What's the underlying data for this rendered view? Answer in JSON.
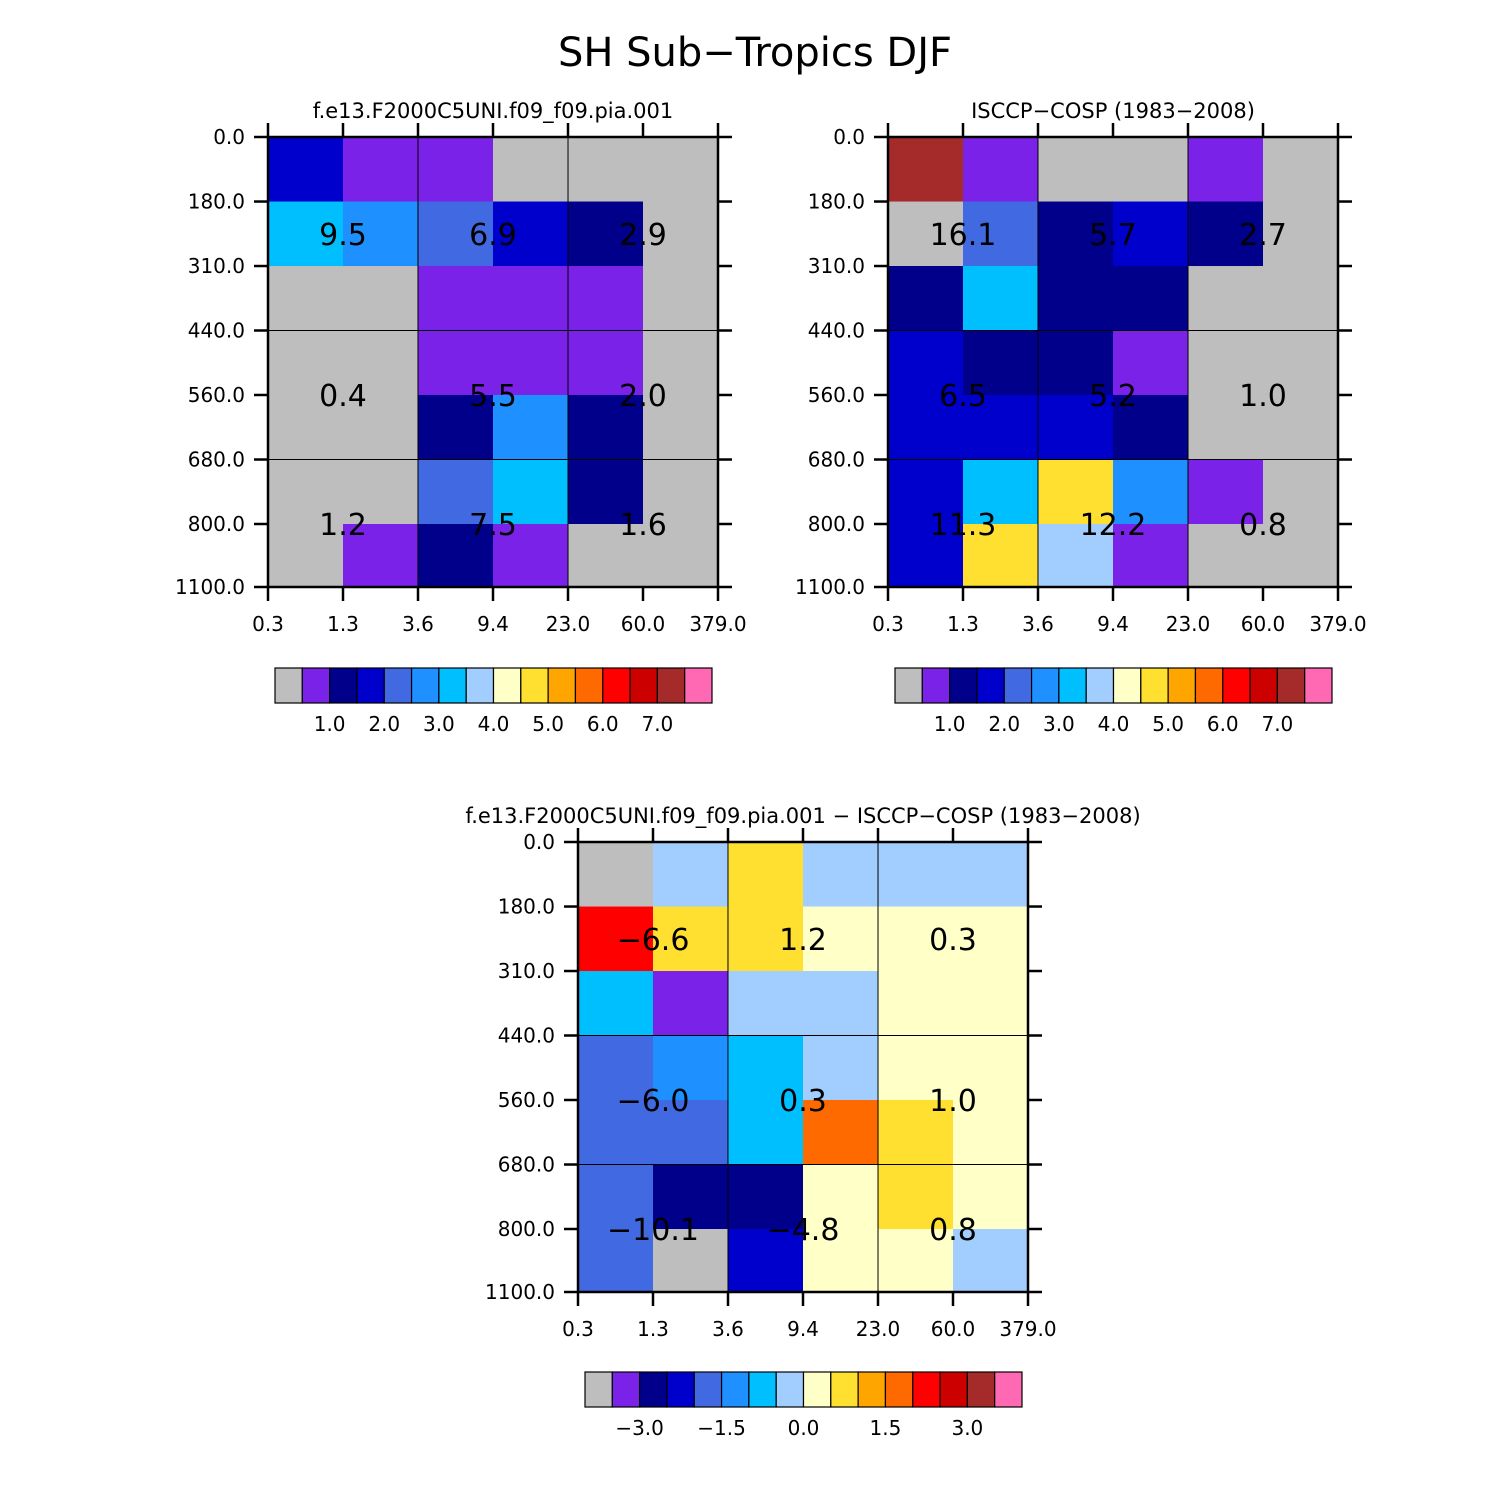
{
  "figure_title": "SH Sub−Tropics DJF",
  "chart_data": [
    {
      "type": "heatmap",
      "title": "f.e13.F2000C5UNI.f09_f09.pia.001",
      "x_ticks": [
        "0.3",
        "1.3",
        "3.6",
        "9.4",
        "23.0",
        "60.0",
        "379.0"
      ],
      "y_ticks": [
        "0.0",
        "180.0",
        "310.0",
        "440.0",
        "560.0",
        "680.0",
        "800.0",
        "1100.0"
      ],
      "cells": [
        [
          "c3",
          "c1",
          "c1",
          "c0",
          "c0",
          "c0"
        ],
        [
          "c6",
          "c5",
          "c4",
          "c3",
          "c2",
          "c0"
        ],
        [
          "c0",
          "c0",
          "c1",
          "c1",
          "c1",
          "c0"
        ],
        [
          "c0",
          "c0",
          "c1",
          "c1",
          "c1",
          "c0"
        ],
        [
          "c0",
          "c0",
          "c2",
          "c5",
          "c2",
          "c0"
        ],
        [
          "c0",
          "c0",
          "c4",
          "c6",
          "c2",
          "c0"
        ],
        [
          "c0",
          "c1",
          "c2",
          "c1",
          "c0",
          "c0"
        ]
      ],
      "annotations": [
        {
          "row": 1,
          "col": 0,
          "text": "9.5"
        },
        {
          "row": 1,
          "col": 1,
          "text": "6.9"
        },
        {
          "row": 1,
          "col": 2,
          "text": "2.9"
        },
        {
          "row": 2,
          "col": 0,
          "text": "0.4"
        },
        {
          "row": 2,
          "col": 1,
          "text": "5.5"
        },
        {
          "row": 2,
          "col": 2,
          "text": "2.0"
        },
        {
          "row": 3,
          "col": 0,
          "text": "1.2"
        },
        {
          "row": 3,
          "col": 1,
          "text": "7.5"
        },
        {
          "row": 3,
          "col": 2,
          "text": "1.6"
        }
      ],
      "colorbar_labels": [
        "1.0",
        "2.0",
        "3.0",
        "4.0",
        "5.0",
        "6.0",
        "7.0"
      ]
    },
    {
      "type": "heatmap",
      "title": "ISCCP−COSP (1983−2008)",
      "x_ticks": [
        "0.3",
        "1.3",
        "3.6",
        "9.4",
        "23.0",
        "60.0",
        "379.0"
      ],
      "y_ticks": [
        "0.0",
        "180.0",
        "310.0",
        "440.0",
        "560.0",
        "680.0",
        "800.0",
        "1100.0"
      ],
      "cells": [
        [
          "c14",
          "c1",
          "c0",
          "c0",
          "c1",
          "c0"
        ],
        [
          "c0",
          "c4",
          "c2",
          "c3",
          "c2",
          "c0"
        ],
        [
          "c2",
          "c6",
          "c2",
          "c2",
          "c0",
          "c0"
        ],
        [
          "c3",
          "c2",
          "c2",
          "c1",
          "c0",
          "c0"
        ],
        [
          "c3",
          "c3",
          "c3",
          "c2",
          "c0",
          "c0"
        ],
        [
          "c3",
          "c6",
          "c9",
          "c5",
          "c1",
          "c0"
        ],
        [
          "c3",
          "c9",
          "c7",
          "c1",
          "c0",
          "c0"
        ]
      ],
      "annotations": [
        {
          "row": 1,
          "col": 0,
          "text": "16.1"
        },
        {
          "row": 1,
          "col": 1,
          "text": "5.7"
        },
        {
          "row": 1,
          "col": 2,
          "text": "2.7"
        },
        {
          "row": 2,
          "col": 0,
          "text": "6.5"
        },
        {
          "row": 2,
          "col": 1,
          "text": "5.2"
        },
        {
          "row": 2,
          "col": 2,
          "text": "1.0"
        },
        {
          "row": 3,
          "col": 0,
          "text": "11.3"
        },
        {
          "row": 3,
          "col": 1,
          "text": "12.2"
        },
        {
          "row": 3,
          "col": 2,
          "text": "0.8"
        }
      ],
      "colorbar_labels": [
        "1.0",
        "2.0",
        "3.0",
        "4.0",
        "5.0",
        "6.0",
        "7.0"
      ]
    },
    {
      "type": "heatmap",
      "title": "f.e13.F2000C5UNI.f09_f09.pia.001 − ISCCP−COSP (1983−2008)",
      "x_ticks": [
        "0.3",
        "1.3",
        "3.6",
        "9.4",
        "23.0",
        "60.0",
        "379.0"
      ],
      "y_ticks": [
        "0.0",
        "180.0",
        "310.0",
        "440.0",
        "560.0",
        "680.0",
        "800.0",
        "1100.0"
      ],
      "cells": [
        [
          "c0",
          "c7",
          "c9",
          "c7",
          "c7",
          "c7"
        ],
        [
          "c12",
          "c9",
          "c9",
          "c8",
          "c8",
          "c8"
        ],
        [
          "c6",
          "c1",
          "c7",
          "c7",
          "c8",
          "c8"
        ],
        [
          "c4",
          "c5",
          "c6",
          "c7",
          "c8",
          "c8"
        ],
        [
          "c4",
          "c4",
          "c6",
          "c11",
          "c9",
          "c8"
        ],
        [
          "c4",
          "c2",
          "c2",
          "c8",
          "c9",
          "c8"
        ],
        [
          "c4",
          "c0",
          "c3",
          "c8",
          "c8",
          "c7"
        ]
      ],
      "annotations": [
        {
          "row": 1,
          "col": 0,
          "text": "−6.6"
        },
        {
          "row": 1,
          "col": 1,
          "text": "1.2"
        },
        {
          "row": 1,
          "col": 2,
          "text": "0.3"
        },
        {
          "row": 2,
          "col": 0,
          "text": "−6.0"
        },
        {
          "row": 2,
          "col": 1,
          "text": "0.3"
        },
        {
          "row": 2,
          "col": 2,
          "text": "1.0"
        },
        {
          "row": 3,
          "col": 0,
          "text": "−10.1"
        },
        {
          "row": 3,
          "col": 1,
          "text": "−4.8"
        },
        {
          "row": 3,
          "col": 2,
          "text": "0.8"
        }
      ],
      "colorbar_labels": [
        "−3.0",
        "−1.5",
        "0.0",
        "1.5",
        "3.0"
      ]
    }
  ],
  "palette": {
    "c0": "#bebebe",
    "c1": "#7b22e8",
    "c2": "#00008b",
    "c3": "#0000cd",
    "c4": "#4169e1",
    "c5": "#1e90ff",
    "c6": "#00bfff",
    "c7": "#a2cdff",
    "c8": "#ffffc8",
    "c9": "#ffe030",
    "c10": "#ffa500",
    "c11": "#ff6a00",
    "c12": "#ff0000",
    "c13": "#cd0000",
    "c14": "#a52a2a",
    "c15": "#ff69b4"
  },
  "colorbar_palettes": [
    [
      "c0",
      "c1",
      "c2",
      "c3",
      "c4",
      "c5",
      "c6",
      "c7",
      "c8",
      "c9",
      "c10",
      "c11",
      "c12",
      "c13",
      "c14",
      "c15"
    ],
    [
      "c0",
      "c1",
      "c2",
      "c3",
      "c4",
      "c5",
      "c6",
      "c7",
      "c8",
      "c9",
      "c10",
      "c11",
      "c12",
      "c13",
      "c14",
      "c15"
    ],
    [
      "c0",
      "c1",
      "c2",
      "c3",
      "c4",
      "c5",
      "c6",
      "c7",
      "c8",
      "c9",
      "c10",
      "c11",
      "c12",
      "c13",
      "c14",
      "c15"
    ]
  ]
}
